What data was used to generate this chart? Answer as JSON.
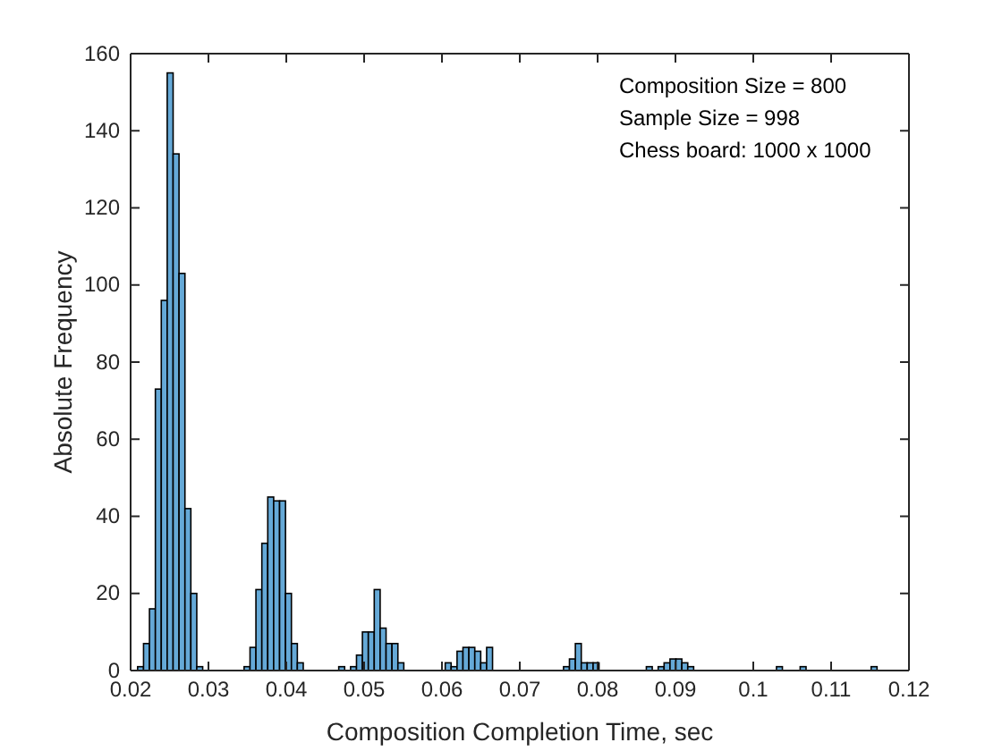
{
  "chart_data": {
    "type": "histogram",
    "xlabel": "Composition Completion Time, sec",
    "ylabel": "Absolute Frequency",
    "annotations": [
      "Composition Size = 800",
      "Sample Size = 998",
      "Chess board: 1000 x 1000"
    ],
    "color": "#65a9d7",
    "bins": [
      0.0209,
      0.02166,
      0.02242,
      0.02318,
      0.02394,
      0.0247,
      0.02546,
      0.02622,
      0.02698,
      0.02774,
      0.0285,
      0.02926,
      0.03002,
      0.03078,
      0.03154,
      0.0323,
      0.03306,
      0.03382,
      0.03458,
      0.03534,
      0.0361,
      0.03686,
      0.03762,
      0.03838,
      0.03914,
      0.0399,
      0.04066,
      0.04142,
      0.04218,
      0.04294,
      0.0437,
      0.04446,
      0.04522,
      0.04598,
      0.04674,
      0.0475,
      0.04826,
      0.04902,
      0.04978,
      0.05054,
      0.0513,
      0.05206,
      0.05282,
      0.05358,
      0.05434,
      0.0551,
      0.05586,
      0.05662,
      0.05738,
      0.05814,
      0.0589,
      0.05966,
      0.06042,
      0.06118,
      0.06194,
      0.0627,
      0.06346,
      0.06422,
      0.06498,
      0.06574,
      0.0665,
      0.06726,
      0.06802,
      0.06878,
      0.06954,
      0.0703,
      0.07106,
      0.07182,
      0.07258,
      0.07334,
      0.0741,
      0.07486,
      0.07562,
      0.07638,
      0.07714,
      0.0779,
      0.07866,
      0.07942,
      0.08018,
      0.08094,
      0.0817,
      0.08246,
      0.08322,
      0.08398,
      0.08474,
      0.0855,
      0.08626,
      0.08702,
      0.08778,
      0.08854,
      0.0893,
      0.09006,
      0.09082,
      0.09158,
      0.09234,
      0.0931,
      0.09386,
      0.09462,
      0.09538,
      0.09614,
      0.0969,
      0.09766,
      0.09842,
      0.09918,
      0.09994,
      0.1007,
      0.10146,
      0.10222,
      0.10298,
      0.10374,
      0.1045,
      0.10526,
      0.10602,
      0.10678,
      0.10754,
      0.1083,
      0.10906,
      0.10982,
      0.11058,
      0.11134,
      0.1121,
      0.11286,
      0.11362,
      0.11438,
      0.11514,
      0.1159
    ],
    "values": [
      1,
      7,
      16,
      73,
      96,
      155,
      134,
      103,
      42,
      20,
      1,
      0,
      0,
      0,
      0,
      0,
      0,
      0,
      1,
      6,
      21,
      33,
      45,
      44,
      44,
      20,
      7,
      2,
      0,
      0,
      0,
      0,
      0,
      0,
      1,
      0,
      1,
      4,
      10,
      10,
      21,
      11,
      7,
      7,
      2,
      0,
      0,
      0,
      0,
      0,
      0,
      0,
      2,
      1,
      5,
      6,
      6,
      5,
      2,
      6,
      0,
      0,
      0,
      0,
      0,
      0,
      0,
      0,
      0,
      0,
      0,
      0,
      1,
      3,
      7,
      2,
      2,
      2,
      0,
      0,
      0,
      0,
      0,
      0,
      0,
      0,
      1,
      0,
      1,
      2,
      3,
      3,
      2,
      1,
      0,
      0,
      0,
      0,
      0,
      0,
      0,
      0,
      0,
      0,
      0,
      0,
      0,
      0,
      1,
      0,
      0,
      0,
      1,
      0,
      0,
      0,
      0,
      0,
      0,
      0,
      0,
      0,
      0,
      0,
      1
    ],
    "xlim": [
      0.02,
      0.12
    ],
    "xticks": [
      0.02,
      0.03,
      0.04,
      0.05,
      0.06,
      0.07,
      0.08,
      0.09,
      0.1,
      0.11,
      0.12
    ],
    "ylim": [
      0,
      160
    ],
    "yticks": [
      0,
      20,
      40,
      60,
      80,
      100,
      120,
      140,
      160
    ],
    "grid": false
  }
}
